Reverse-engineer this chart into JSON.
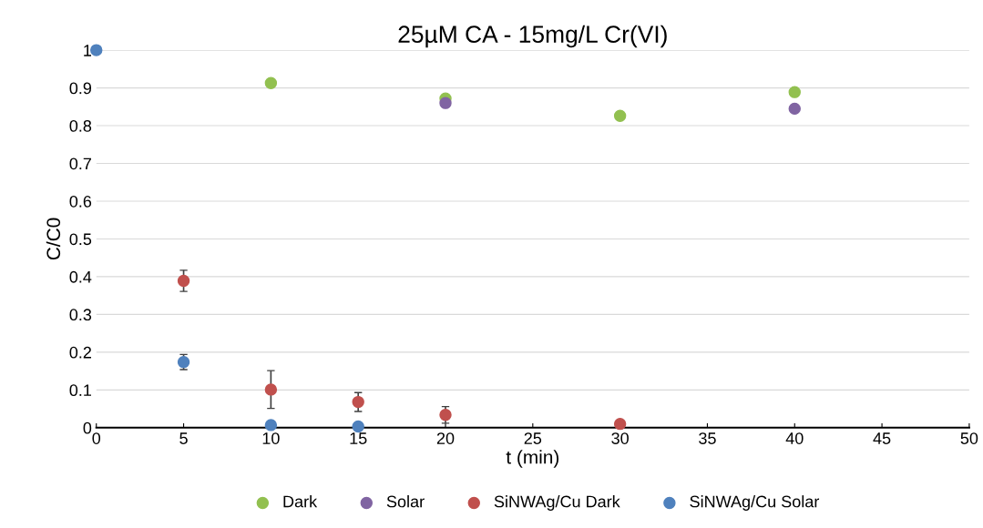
{
  "chart_data": {
    "type": "scatter",
    "title": "25µM CA - 15mg/L Cr(VI)",
    "xlabel": "t (min)",
    "ylabel": "C/C0",
    "xlim": [
      0,
      50
    ],
    "xticks": [
      0,
      5,
      10,
      15,
      20,
      25,
      30,
      35,
      40,
      45,
      50
    ],
    "ylim": [
      0,
      1
    ],
    "yticks": [
      0,
      0.1,
      0.2,
      0.3,
      0.4,
      0.5,
      0.6,
      0.7,
      0.8,
      0.9,
      1
    ],
    "grid": "y",
    "legend": "bottom",
    "marker": "circle",
    "series": [
      {
        "name": "Dark",
        "color": "#92c050",
        "x": [
          10,
          20,
          30,
          40
        ],
        "values": [
          0.913,
          0.872,
          0.826,
          0.889
        ]
      },
      {
        "name": "Solar",
        "color": "#8064a2",
        "x": [
          20,
          40
        ],
        "values": [
          0.86,
          0.845
        ]
      },
      {
        "name": "SiNWAg/Cu Dark",
        "color": "#c0504d",
        "x": [
          5,
          10,
          15,
          20,
          30
        ],
        "values": [
          0.389,
          0.101,
          0.068,
          0.034,
          0.01
        ],
        "errors": [
          0.028,
          0.05,
          0.025,
          0.022,
          null
        ]
      },
      {
        "name": "SiNWAg/Cu Solar",
        "color": "#4f81bd",
        "x": [
          0,
          5,
          10,
          15
        ],
        "values": [
          1,
          0.174,
          0.007,
          0.003
        ],
        "errors": [
          null,
          0.02,
          null,
          null
        ]
      }
    ]
  }
}
